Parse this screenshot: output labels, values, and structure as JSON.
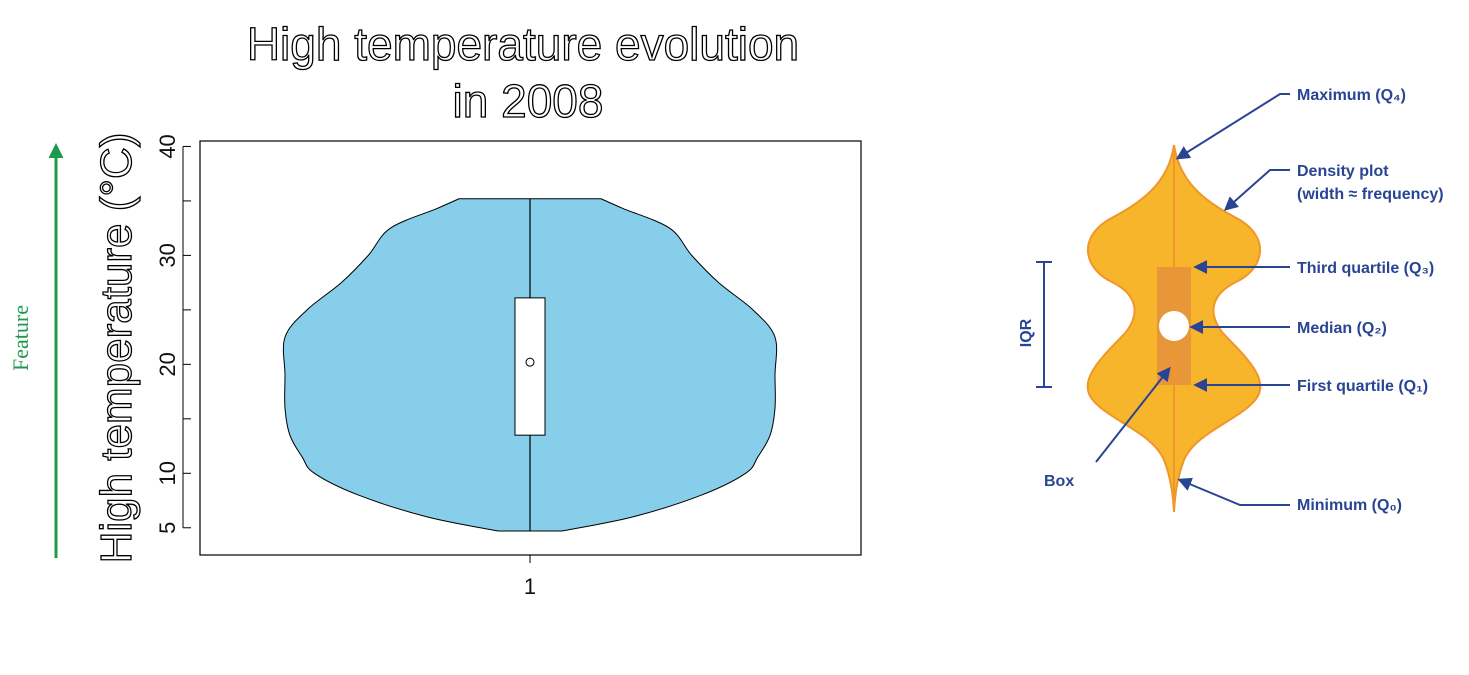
{
  "chart_data": {
    "type": "violin",
    "title_lines": [
      "High temperature evolution",
      "in 2008"
    ],
    "xlabel": "",
    "ylabel": "High temperature (°C)",
    "categories": [
      "1"
    ],
    "ylim": [
      2.5,
      40.5
    ],
    "yticks": [
      5,
      10,
      20,
      30,
      40
    ],
    "grid": false,
    "fill_color": "#87ceeb",
    "density_profile": [
      {
        "y": 4.7,
        "w": 0.13
      },
      {
        "y": 6.0,
        "w": 0.42
      },
      {
        "y": 8.0,
        "w": 0.7
      },
      {
        "y": 10.0,
        "w": 0.88
      },
      {
        "y": 11.5,
        "w": 0.93
      },
      {
        "y": 13.5,
        "w": 0.98
      },
      {
        "y": 16.0,
        "w": 1.0
      },
      {
        "y": 19.0,
        "w": 1.0
      },
      {
        "y": 22.5,
        "w": 1.0
      },
      {
        "y": 25.0,
        "w": 0.91
      },
      {
        "y": 27.5,
        "w": 0.77
      },
      {
        "y": 30.0,
        "w": 0.66
      },
      {
        "y": 32.5,
        "w": 0.57
      },
      {
        "y": 34.3,
        "w": 0.38
      },
      {
        "y": 35.2,
        "w": 0.29
      }
    ],
    "min": 4.7,
    "q1": 13.5,
    "median": 20.2,
    "q3": 26.1,
    "max": 35.2
  },
  "feature_label": "Feature",
  "colors": {
    "feature_arrow": "#1e9a4c",
    "violin_fill": "#f7b52c",
    "violin_edge": "#f0962a",
    "box_fill": "#e8963a",
    "annotation": "#2a4494"
  },
  "annotations": {
    "maximum": "Maximum (Q₄)",
    "density_line1": "Density plot",
    "density_line2": "(width ≈ frequency)",
    "third_quartile": "Third quartile (Q₃)",
    "median": "Median (Q₂)",
    "first_quartile": "First quartile (Q₁)",
    "minimum": "Minimum (Q₀)",
    "box": "Box",
    "iqr": "IQR"
  }
}
